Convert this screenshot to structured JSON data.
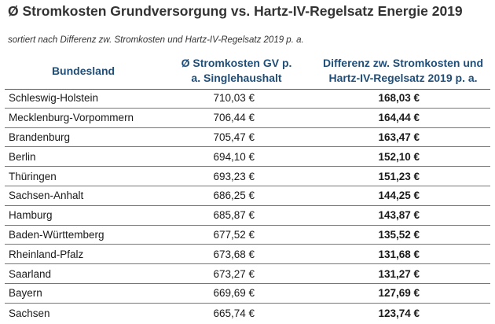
{
  "title": "Ø Stromkosten Grundversorgung vs. Hartz-IV-Regelsatz Energie 2019",
  "subtitle": "sortiert nach Differenz zw. Stromkosten und Hartz-IV-Regelsatz 2019 p. a.",
  "headers": {
    "state": "Bundesland",
    "cost_line1": "Ø Stromkosten GV p.",
    "cost_line2": "a. Singlehaushalt",
    "diff_line1": "Differenz zw. Stromkosten und",
    "diff_line2": "Hartz-IV-Regelsatz 2019 p. a."
  },
  "rows": [
    {
      "state": "Schleswig-Holstein",
      "cost": "710,03 €",
      "diff": "168,03 €"
    },
    {
      "state": "Mecklenburg-Vorpommern",
      "cost": "706,44 €",
      "diff": "164,44 €"
    },
    {
      "state": "Brandenburg",
      "cost": "705,47 €",
      "diff": "163,47 €"
    },
    {
      "state": "Berlin",
      "cost": "694,10 €",
      "diff": "152,10 €"
    },
    {
      "state": "Thüringen",
      "cost": "693,23 €",
      "diff": "151,23 €"
    },
    {
      "state": "Sachsen-Anhalt",
      "cost": "686,25 €",
      "diff": "144,25 €"
    },
    {
      "state": "Hamburg",
      "cost": "685,87 €",
      "diff": "143,87 €"
    },
    {
      "state": "Baden-Württemberg",
      "cost": "677,52 €",
      "diff": "135,52 €"
    },
    {
      "state": "Rheinland-Pfalz",
      "cost": "673,68 €",
      "diff": "131,68 €"
    },
    {
      "state": "Saarland",
      "cost": "673,27 €",
      "diff": "131,27 €"
    },
    {
      "state": "Bayern",
      "cost": "669,69 €",
      "diff": "127,69 €"
    },
    {
      "state": "Sachsen",
      "cost": "665,74 €",
      "diff": "123,74 €"
    }
  ]
}
